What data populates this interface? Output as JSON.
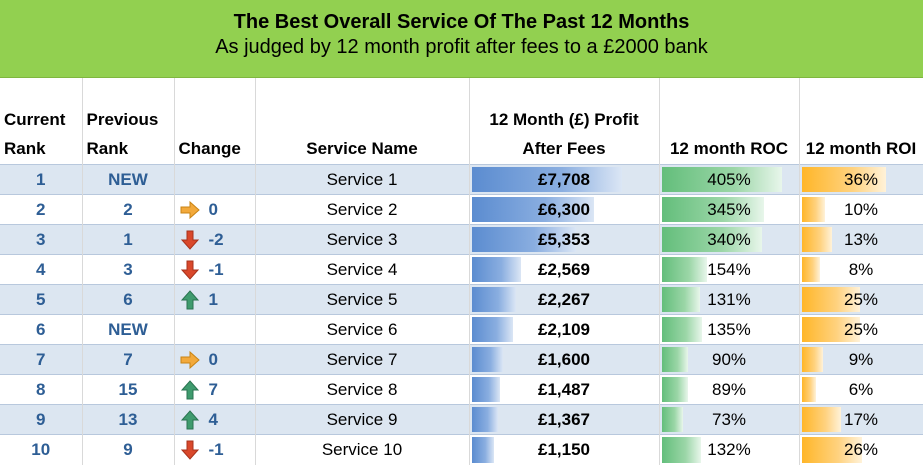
{
  "title": "The Best Overall Service Of The Past 12 Months",
  "subtitle": "As judged by 12 month profit after fees to a £2000 bank",
  "headers": {
    "current_rank": "Current Rank",
    "previous_rank": "Previous Rank",
    "change": "Change",
    "service_name": "Service Name",
    "profit": "12 Month (£) Profit After Fees",
    "roc": "12 month ROC",
    "roi": "12 month ROI"
  },
  "colors": {
    "banner": "#92d050",
    "profit_bar": "#5b8cd0",
    "roc_bar": "#63be7b",
    "roi_bar": "#ffb628",
    "arrow_up": "#2e8b57",
    "arrow_down": "#d9482b",
    "arrow_side": "#f2a93b"
  },
  "rows": [
    {
      "rank": "1",
      "prev": "NEW",
      "change_icon": "",
      "change": "",
      "name": "Service 1",
      "profit": "£7,708",
      "profit_num": 7708,
      "roc": "405%",
      "roc_num": 405,
      "roi": "36%",
      "roi_num": 36
    },
    {
      "rank": "2",
      "prev": "2",
      "change_icon": "right-arrow-icon",
      "change": "0",
      "name": "Service 2",
      "profit": "£6,300",
      "profit_num": 6300,
      "roc": "345%",
      "roc_num": 345,
      "roi": "10%",
      "roi_num": 10
    },
    {
      "rank": "3",
      "prev": "1",
      "change_icon": "down-arrow-icon",
      "change": "-2",
      "name": "Service 3",
      "profit": "£5,353",
      "profit_num": 5353,
      "roc": "340%",
      "roc_num": 340,
      "roi": "13%",
      "roi_num": 13
    },
    {
      "rank": "4",
      "prev": "3",
      "change_icon": "down-arrow-icon",
      "change": "-1",
      "name": "Service 4",
      "profit": "£2,569",
      "profit_num": 2569,
      "roc": "154%",
      "roc_num": 154,
      "roi": "8%",
      "roi_num": 8
    },
    {
      "rank": "5",
      "prev": "6",
      "change_icon": "up-arrow-icon",
      "change": "1",
      "name": "Service 5",
      "profit": "£2,267",
      "profit_num": 2267,
      "roc": "131%",
      "roc_num": 131,
      "roi": "25%",
      "roi_num": 25
    },
    {
      "rank": "6",
      "prev": "NEW",
      "change_icon": "",
      "change": "",
      "name": "Service 6",
      "profit": "£2,109",
      "profit_num": 2109,
      "roc": "135%",
      "roc_num": 135,
      "roi": "25%",
      "roi_num": 25
    },
    {
      "rank": "7",
      "prev": "7",
      "change_icon": "right-arrow-icon",
      "change": "0",
      "name": "Service 7",
      "profit": "£1,600",
      "profit_num": 1600,
      "roc": "90%",
      "roc_num": 90,
      "roi": "9%",
      "roi_num": 9
    },
    {
      "rank": "8",
      "prev": "15",
      "change_icon": "up-arrow-icon",
      "change": "7",
      "name": "Service 8",
      "profit": "£1,487",
      "profit_num": 1487,
      "roc": "89%",
      "roc_num": 89,
      "roi": "6%",
      "roi_num": 6
    },
    {
      "rank": "9",
      "prev": "13",
      "change_icon": "up-arrow-icon",
      "change": "4",
      "name": "Service 9",
      "profit": "£1,367",
      "profit_num": 1367,
      "roc": "73%",
      "roc_num": 73,
      "roi": "17%",
      "roi_num": 17
    },
    {
      "rank": "10",
      "prev": "9",
      "change_icon": "down-arrow-icon",
      "change": "-1",
      "name": "Service 10",
      "profit": "£1,150",
      "profit_num": 1150,
      "roc": "132%",
      "roc_num": 132,
      "roi": "26%",
      "roi_num": 26
    }
  ]
}
